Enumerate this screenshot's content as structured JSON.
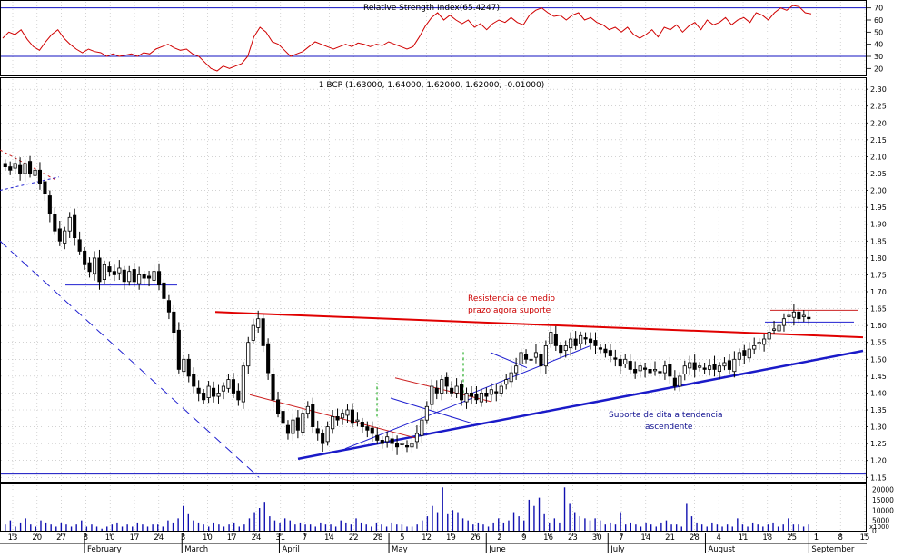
{
  "colors": {
    "background": "#ffffff",
    "candle": "#000000",
    "rsi_line": "#d00000",
    "rsi_levels": "#1010c0",
    "resistance": "#e00000",
    "support": "#1a1ac8",
    "minor_red": "#cc2222",
    "minor_blue": "#2020d0",
    "gap_markers": "#00a000",
    "grid": "#b8b8b8",
    "text_red": "#cc0000",
    "text_blue": "#101090"
  },
  "chart_data": [
    {
      "type": "line",
      "title": "Relative Strength Index(65.4247)",
      "yticks": [
        "70",
        "60",
        "50",
        "40",
        "30",
        "20"
      ],
      "ylim": [
        15,
        75
      ],
      "reference_lines": [
        70,
        30
      ],
      "series": [
        {
          "values": [
            45,
            50,
            48,
            52,
            44,
            38,
            35,
            42,
            48,
            52,
            45,
            40,
            36,
            33,
            36,
            34,
            33,
            30,
            32,
            30,
            31,
            32,
            30,
            33,
            32,
            36,
            38,
            40,
            37,
            35,
            36,
            32,
            30,
            25,
            20,
            18,
            22,
            20,
            22,
            24,
            30,
            46,
            54,
            50,
            42,
            40,
            35,
            30,
            32,
            34,
            38,
            42,
            40,
            38,
            36,
            38,
            40,
            38,
            41,
            40,
            38,
            40,
            39,
            42,
            40,
            38,
            36,
            38,
            46,
            55,
            62,
            66,
            60,
            64,
            60,
            57,
            60,
            54,
            57,
            52,
            57,
            60,
            58,
            62,
            58,
            56,
            64,
            68,
            70,
            66,
            63,
            64,
            60,
            64,
            66,
            60,
            62,
            58,
            56,
            52,
            54,
            50,
            54,
            48,
            45,
            48,
            52,
            46,
            54,
            52,
            56,
            50,
            55,
            58,
            52,
            60,
            56,
            58,
            62,
            56,
            60,
            62,
            58,
            66,
            64,
            60,
            66,
            70,
            68,
            72,
            71,
            66,
            65
          ]
        }
      ]
    },
    {
      "type": "candlestick",
      "title": "1 BCP (1.63000, 1.64000, 1.62000, 1.62000, -0.01000)",
      "yticks": [
        "2.30",
        "2.25",
        "2.20",
        "2.15",
        "2.10",
        "2.05",
        "2.00",
        "1.95",
        "1.90",
        "1.85",
        "1.80",
        "1.75",
        "1.70",
        "1.65",
        "1.60",
        "1.55",
        "1.50",
        "1.45",
        "1.40",
        "1.35",
        "1.30",
        "1.25",
        "1.20",
        "1.15"
      ],
      "ylim": [
        1.14,
        2.33
      ],
      "series": [
        {
          "close": [
            2.07,
            2.06,
            2.08,
            2.05,
            2.08,
            2.05,
            2.06,
            2.02,
            1.99,
            1.93,
            1.88,
            1.85,
            1.88,
            1.92,
            1.86,
            1.82,
            1.78,
            1.76,
            1.8,
            1.73,
            1.78,
            1.76,
            1.75,
            1.77,
            1.73,
            1.76,
            1.73,
            1.75,
            1.74,
            1.74,
            1.76,
            1.72,
            1.68,
            1.64,
            1.58,
            1.47,
            1.5,
            1.45,
            1.42,
            1.4,
            1.38,
            1.42,
            1.39,
            1.4,
            1.42,
            1.44,
            1.4,
            1.38,
            1.48,
            1.55,
            1.6,
            1.62,
            1.54,
            1.46,
            1.38,
            1.34,
            1.31,
            1.28,
            1.32,
            1.29,
            1.34,
            1.36,
            1.3,
            1.28,
            1.25,
            1.3,
            1.33,
            1.32,
            1.34,
            1.35,
            1.31,
            1.32,
            1.3,
            1.29,
            1.28,
            1.26,
            1.25,
            1.27,
            1.25,
            1.24,
            1.25,
            1.24,
            1.25,
            1.28,
            1.32,
            1.36,
            1.42,
            1.4,
            1.44,
            1.42,
            1.4,
            1.42,
            1.38,
            1.4,
            1.39,
            1.38,
            1.4,
            1.39,
            1.41,
            1.4,
            1.42,
            1.44,
            1.46,
            1.48,
            1.52,
            1.5,
            1.5,
            1.52,
            1.48,
            1.54,
            1.58,
            1.54,
            1.52,
            1.54,
            1.56,
            1.54,
            1.57,
            1.56,
            1.55,
            1.54,
            1.53,
            1.52,
            1.51,
            1.5,
            1.48,
            1.5,
            1.47,
            1.46,
            1.48,
            1.47,
            1.46,
            1.47,
            1.46,
            1.48,
            1.45,
            1.42,
            1.45,
            1.48,
            1.49,
            1.47,
            1.48,
            1.47,
            1.48,
            1.47,
            1.48,
            1.49,
            1.47,
            1.5,
            1.52,
            1.51,
            1.53,
            1.54,
            1.55,
            1.56,
            1.58,
            1.59,
            1.6,
            1.62,
            1.63,
            1.64,
            1.62,
            1.63,
            1.62
          ]
        }
      ],
      "annotations": [
        "Resistencia de medio prazo agora suporte",
        "Suporte de dita a tendencia ascendente"
      ]
    },
    {
      "type": "bar",
      "yticks": [
        "20000",
        "15000",
        "10000",
        "5000",
        "0"
      ],
      "ylim": [
        0,
        22000
      ],
      "units_label": "x1000",
      "series": [
        {
          "values": [
            3000,
            5000,
            2000,
            4000,
            6000,
            3000,
            2000,
            5000,
            4000,
            3000,
            2000,
            4000,
            3000,
            2000,
            3000,
            5000,
            2000,
            3000,
            2000,
            1000,
            2000,
            3000,
            4000,
            2000,
            3000,
            2000,
            4000,
            3000,
            2000,
            3000,
            3000,
            2000,
            5000,
            4000,
            6000,
            12000,
            8000,
            5000,
            4000,
            3000,
            2000,
            4000,
            3000,
            2000,
            3000,
            4000,
            2000,
            3000,
            6000,
            9000,
            11000,
            14000,
            7000,
            5000,
            4000,
            6000,
            5000,
            3000,
            4000,
            3000,
            3000,
            2000,
            4000,
            3000,
            3000,
            2000,
            5000,
            4000,
            3000,
            6000,
            4000,
            3000,
            2000,
            4000,
            3000,
            2000,
            4000,
            3000,
            3000,
            2000,
            2000,
            3000,
            5000,
            7000,
            12000,
            9000,
            21000,
            8000,
            10000,
            9000,
            6000,
            5000,
            3000,
            4000,
            3000,
            2000,
            4000,
            6000,
            4000,
            5000,
            9000,
            7000,
            5000,
            15000,
            12000,
            16000,
            8000,
            4000,
            6000,
            4000,
            21000,
            13000,
            9000,
            7000,
            6000,
            5000,
            6000,
            5000,
            3000,
            4000,
            3000,
            9000,
            3000,
            4000,
            3000,
            2000,
            4000,
            3000,
            2000,
            4000,
            5000,
            3000,
            3000,
            2000,
            13000,
            7000,
            4000,
            3000,
            2000,
            4000,
            3000,
            2000,
            3000,
            2000,
            6000,
            3000,
            2000,
            4000,
            3000,
            2000,
            3000,
            4000,
            2000,
            3000,
            6000,
            3000,
            3000,
            2000,
            3000
          ]
        }
      ]
    }
  ],
  "axis": {
    "day_labels": [
      "13",
      "20",
      "27",
      "3",
      "10",
      "17",
      "24",
      "3",
      "10",
      "17",
      "24",
      "31",
      "7",
      "14",
      "22",
      "28",
      "5",
      "12",
      "19",
      "26",
      "2",
      "9",
      "16",
      "23",
      "30",
      "7",
      "14",
      "21",
      "28",
      "4",
      "11",
      "18",
      "25",
      "1",
      "8",
      "15"
    ],
    "month_labels": [
      "February",
      "March",
      "April",
      "May",
      "June",
      "July",
      "August",
      "September"
    ]
  }
}
